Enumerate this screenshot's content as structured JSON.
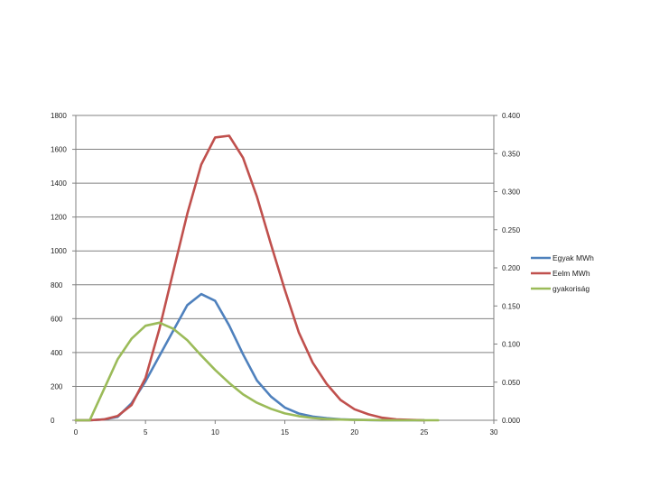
{
  "chart_data": {
    "type": "line",
    "x": [
      0,
      1,
      2,
      3,
      4,
      5,
      6,
      7,
      8,
      9,
      10,
      11,
      12,
      13,
      14,
      15,
      16,
      17,
      18,
      19,
      20,
      21,
      22,
      23,
      24,
      25,
      26,
      27,
      28,
      29,
      30
    ],
    "series": [
      {
        "name": "Egyak MWh",
        "axis": "left",
        "color": "#4F81BD",
        "values": [
          0,
          0,
          5,
          20,
          100,
          230,
          380,
          530,
          680,
          745,
          705,
          560,
          390,
          235,
          140,
          75,
          40,
          22,
          12,
          6,
          3,
          1,
          0,
          0,
          0,
          0,
          null,
          null,
          null,
          null,
          null
        ]
      },
      {
        "name": "Eelm MWh",
        "axis": "left",
        "color": "#C0504D",
        "values": [
          0,
          0,
          5,
          25,
          90,
          250,
          540,
          880,
          1220,
          1510,
          1670,
          1680,
          1550,
          1320,
          1040,
          770,
          520,
          340,
          215,
          120,
          65,
          35,
          15,
          5,
          2,
          0,
          null,
          null,
          null,
          null,
          null
        ]
      },
      {
        "name": "gyakoriság",
        "axis": "right",
        "color": "#9BBB59",
        "values": [
          0,
          0,
          0.04,
          0.08,
          0.107,
          0.124,
          0.128,
          0.12,
          0.105,
          0.085,
          0.066,
          0.049,
          0.034,
          0.023,
          0.015,
          0.009,
          0.0055,
          0.003,
          0.0017,
          0.0009,
          0.0005,
          0.0003,
          0.0001,
          0,
          0,
          0,
          0,
          null,
          null,
          null,
          null
        ]
      }
    ],
    "xlim": [
      0,
      30
    ],
    "ylim_left": [
      0,
      1800
    ],
    "ylim_right": [
      0,
      0.4
    ],
    "xticks": [
      "0",
      "5",
      "10",
      "15",
      "20",
      "25",
      "30"
    ],
    "xtick_values": [
      0,
      5,
      10,
      15,
      20,
      25,
      30
    ],
    "yticks_left": [
      "0",
      "200",
      "400",
      "600",
      "800",
      "1000",
      "1200",
      "1400",
      "1600",
      "1800"
    ],
    "yticks_left_values": [
      0,
      200,
      400,
      600,
      800,
      1000,
      1200,
      1400,
      1600,
      1800
    ],
    "yticks_right": [
      "0.000",
      "0.050",
      "0.100",
      "0.150",
      "0.200",
      "0.250",
      "0.300",
      "0.350",
      "0.400"
    ],
    "yticks_right_values": [
      0,
      0.05,
      0.1,
      0.15,
      0.2,
      0.25,
      0.3,
      0.35,
      0.4
    ],
    "grid": "horizontal",
    "legend_position": "right"
  }
}
